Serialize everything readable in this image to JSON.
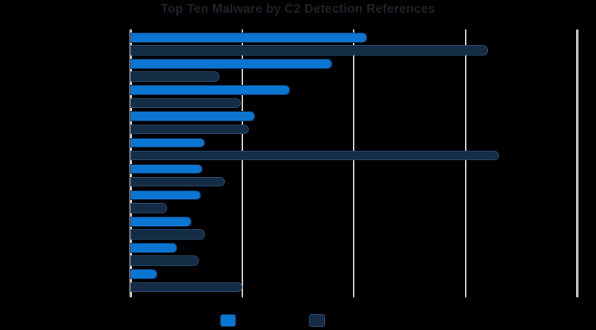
{
  "title": "Top Ten Malware by C2 Detection References",
  "colors": {
    "background": "#000000",
    "title_text": "#20222b",
    "axis_line": "#c6c6c8",
    "gridline": "#c6c6c8",
    "series_blue": "#0b75d2",
    "series_navy": "#152c45"
  },
  "legend": {
    "position": "bottom",
    "items": [
      {
        "id": "series-blue",
        "label": "",
        "color": "#0b75d2"
      },
      {
        "id": "series-navy",
        "label": "",
        "color": "#152c45"
      }
    ],
    "labels_visible": false
  },
  "chart_data": {
    "type": "bar",
    "orientation": "horizontal",
    "title": "Top Ten Malware by C2 Detection References",
    "categories": [
      "",
      "",
      "",
      "",
      "",
      "",
      "",
      "",
      "",
      ""
    ],
    "category_labels_visible": false,
    "axis_tick_labels_visible": false,
    "xlim": [
      0,
      4
    ],
    "x_gridlines": [
      1,
      2,
      3,
      4
    ],
    "x_tick_labels": [
      "",
      "",
      "",
      "",
      ""
    ],
    "grid": true,
    "legend_position": "bottom",
    "series": [
      {
        "name": "series-blue",
        "color": "#0b75d2",
        "values": [
          2.12,
          1.81,
          1.43,
          1.12,
          0.67,
          0.65,
          0.63,
          0.55,
          0.42,
          0.24
        ]
      },
      {
        "name": "series-navy",
        "color": "#152c45",
        "values": [
          3.2,
          0.8,
          0.99,
          1.06,
          3.3,
          0.85,
          0.33,
          0.67,
          0.61,
          1.0
        ]
      }
    ],
    "units_note": "values measured in gridline intervals; numeric tick labels not legible in image"
  }
}
